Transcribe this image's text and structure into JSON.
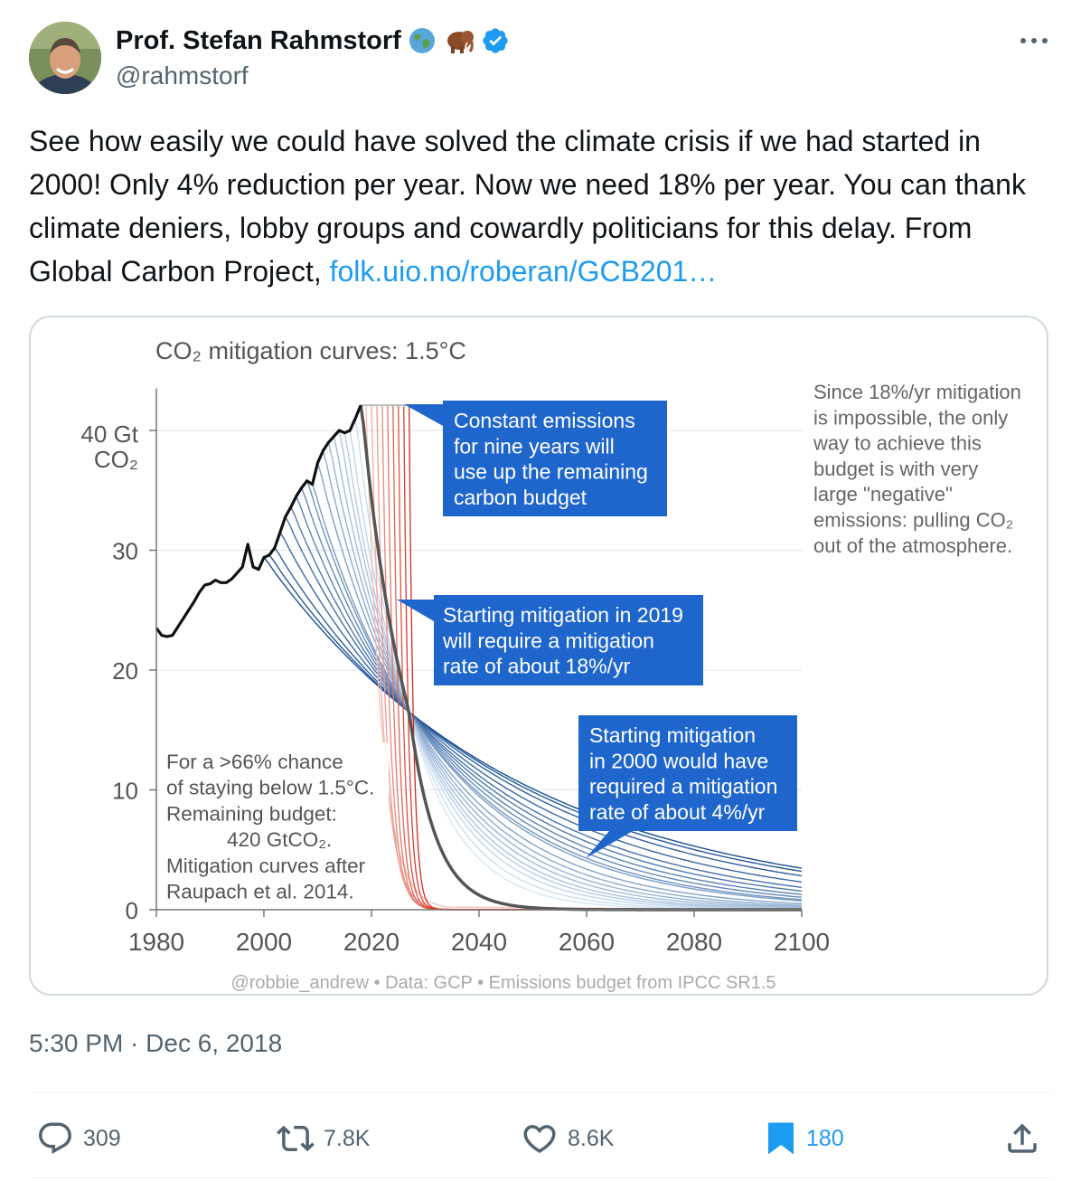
{
  "author": {
    "name": "Prof. Stefan Rahmstorf",
    "handle": "@rahmstorf",
    "emoji_icons": [
      "globe-icon",
      "mammoth-icon"
    ],
    "verified_icon": "verified-badge-icon"
  },
  "tweet": {
    "text_main": "See how easily we could have solved the climate crisis if we had started in 2000! Only 4% reduction per year. Now we need 18% per year. You can thank climate deniers, lobby groups and cowardly politicians for this delay. From Global Carbon Project, ",
    "link_text": "folk.uio.no/roberan/GCB201…",
    "timestamp": "5:30 PM · Dec 6, 2018"
  },
  "actions": {
    "replies": "309",
    "reposts": "7.8K",
    "likes": "8.6K",
    "bookmarks": "180"
  },
  "colors": {
    "link": "#1d9bf0",
    "annotation_box": "#1f66cc",
    "historical_line": "#111111",
    "fast_mitigation": "#e0392b",
    "slow_mitigation": "#1b4f94"
  },
  "chart_data": {
    "type": "line",
    "title": "CO₂ mitigation curves: 1.5°C",
    "y_unit_line1": "40 Gt",
    "y_unit_line2": "CO₂",
    "xlim": [
      1980,
      2100
    ],
    "ylim": [
      0,
      43
    ],
    "x_ticks": [
      1980,
      2000,
      2020,
      2040,
      2060,
      2080,
      2100
    ],
    "y_ticks": [
      {
        "value": 0,
        "label": "0"
      },
      {
        "value": 10,
        "label": "10"
      },
      {
        "value": 20,
        "label": "20"
      },
      {
        "value": 30,
        "label": "30"
      },
      {
        "value": 40,
        "label": ""
      }
    ],
    "historical": {
      "x": [
        1980,
        1981,
        1982,
        1983,
        1984,
        1985,
        1986,
        1987,
        1988,
        1989,
        1990,
        1991,
        1992,
        1993,
        1994,
        1995,
        1996,
        1997,
        1998,
        1999,
        2000,
        2001,
        2002,
        2003,
        2004,
        2005,
        2006,
        2007,
        2008,
        2009,
        2010,
        2011,
        2012,
        2013,
        2014,
        2015,
        2016,
        2017,
        2018
      ],
      "y": [
        23.5,
        22.9,
        22.8,
        22.9,
        23.6,
        24.3,
        25.0,
        25.7,
        26.5,
        27.1,
        27.2,
        27.5,
        27.3,
        27.3,
        27.6,
        28.1,
        28.6,
        30.5,
        28.6,
        28.4,
        29.4,
        29.6,
        30.2,
        31.5,
        32.8,
        33.6,
        34.5,
        35.2,
        35.8,
        35.5,
        37.3,
        38.3,
        39.0,
        39.5,
        40.0,
        39.8,
        40.0,
        41.0,
        42.1
      ]
    },
    "constant_emissions_level": 42.1,
    "convergence_point": {
      "x": 2027,
      "y": 16.5
    },
    "mitigation_start_years": [
      2000,
      2001,
      2002,
      2003,
      2004,
      2005,
      2006,
      2007,
      2008,
      2009,
      2010,
      2011,
      2012,
      2013,
      2014,
      2015,
      2016,
      2017,
      2018
    ],
    "mitigation_rates": {
      "start_2000": "4%/yr",
      "start_2019": "18%/yr"
    },
    "budget_note": {
      "lines": [
        "For a >66% chance",
        "of staying below 1.5°C.",
        "Remaining budget:",
        "420 GtCO₂.",
        "Mitigation curves after",
        "Raupach et al. 2014."
      ]
    },
    "side_note": {
      "lines": [
        "Since 18%/yr mitigation",
        "is impossible, the only",
        "way to achieve this",
        "budget is with very",
        "large \"negative\"",
        "emissions: pulling CO₂",
        "out of the atmosphere."
      ]
    },
    "annotations": [
      {
        "lines": [
          "Constant emissions",
          "for nine years will",
          "use up the remaining",
          "carbon budget"
        ]
      },
      {
        "lines": [
          "Starting mitigation in 2019",
          "will require a mitigation",
          "rate of about 18%/yr"
        ]
      },
      {
        "lines": [
          "Starting mitigation",
          "in 2000 would have",
          "required a mitigation",
          "rate of about 4%/yr"
        ]
      }
    ],
    "footer": "@robbie_andrew  •  Data: GCP  •  Emissions budget from IPCC SR1.5"
  }
}
